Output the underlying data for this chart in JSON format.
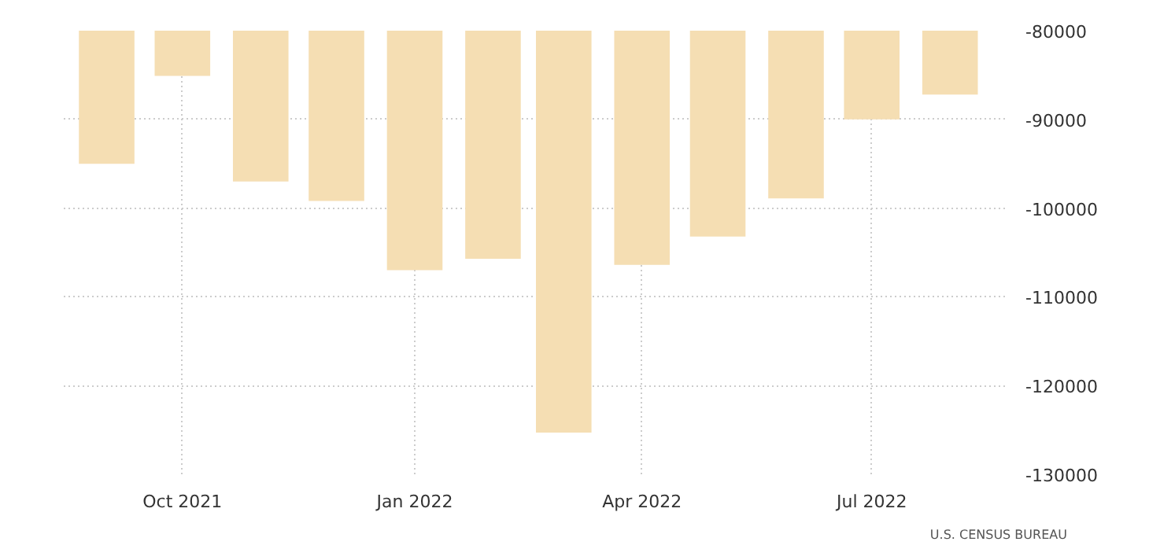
{
  "chart_data": {
    "type": "bar",
    "x": [
      "2021-09",
      "2021-10",
      "2021-11",
      "2021-12",
      "2022-01",
      "2022-02",
      "2022-03",
      "2022-04",
      "2022-05",
      "2022-06",
      "2022-07",
      "2022-08"
    ],
    "series": [
      {
        "color": "#f5deb3",
        "values": [
          -95000,
          -85100,
          -97000,
          -99200,
          -107000,
          -105700,
          -125300,
          -106400,
          -103200,
          -98900,
          -90000,
          -87200
        ]
      }
    ],
    "ylim": [
      -130000,
      -80000
    ],
    "yticks": [
      -130000,
      -120000,
      -110000,
      -100000,
      -90000,
      -80000
    ],
    "xlim": [
      "2021-08-15",
      "2022-08-24"
    ],
    "xticks": [
      {
        "value": "2021-10",
        "label": "Oct 2021"
      },
      {
        "value": "2022-01",
        "label": "Jan 2022"
      },
      {
        "value": "2022-04",
        "label": "Apr 2022"
      },
      {
        "value": "2022-07",
        "label": "Jul 2022"
      }
    ],
    "grid": true,
    "annotations": [
      "U.S.  CENSUS BUREAU"
    ]
  }
}
